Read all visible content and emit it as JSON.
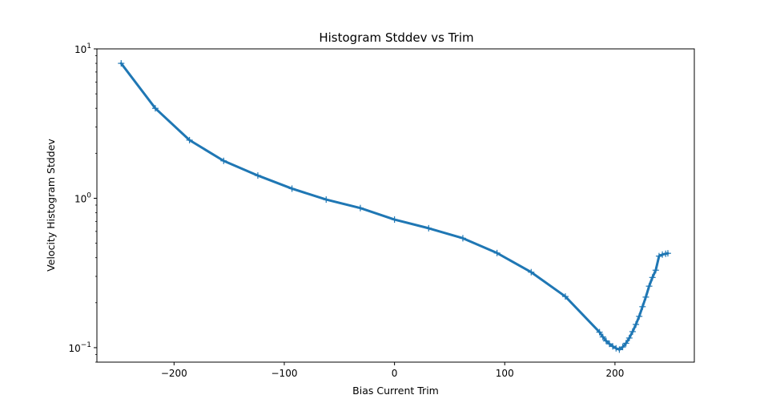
{
  "chart_data": {
    "type": "line",
    "title": "Histogram Stddev vs Trim",
    "xlabel": "Bias Current Trim",
    "ylabel": "Velocity Histogram Stddev",
    "xlim": [
      -270,
      272
    ],
    "ylim": [
      0.08,
      10
    ],
    "yscale": "log",
    "grid": false,
    "xticks": [
      -200,
      -100,
      0,
      100,
      200
    ],
    "xtick_labels": [
      "−200",
      "−100",
      "0",
      "100",
      "200"
    ],
    "yticks": [
      0.1,
      1,
      10
    ],
    "ytick_labels": [
      "10",
      "10",
      "10"
    ],
    "ytick_exponents": [
      "−1",
      "0",
      "1"
    ],
    "series": [
      {
        "color": "#1f77b4",
        "marker": "+",
        "x": [
          -248,
          -217,
          -186,
          -155,
          -124,
          -93,
          -62,
          -31,
          0,
          31,
          62,
          93,
          124,
          155,
          186,
          189,
          192,
          195,
          198,
          201,
          204,
          207,
          210,
          213,
          216,
          219,
          222,
          225,
          228,
          231,
          234,
          237,
          240,
          243,
          246,
          248
        ],
        "y": [
          8.0,
          4.0,
          2.45,
          1.78,
          1.42,
          1.16,
          0.98,
          0.86,
          0.72,
          0.63,
          0.54,
          0.43,
          0.32,
          0.22,
          0.127,
          0.118,
          0.111,
          0.106,
          0.102,
          0.099,
          0.097,
          0.101,
          0.107,
          0.116,
          0.128,
          0.143,
          0.162,
          0.188,
          0.218,
          0.258,
          0.295,
          0.33,
          0.41,
          0.42,
          0.425,
          0.428
        ]
      }
    ]
  }
}
